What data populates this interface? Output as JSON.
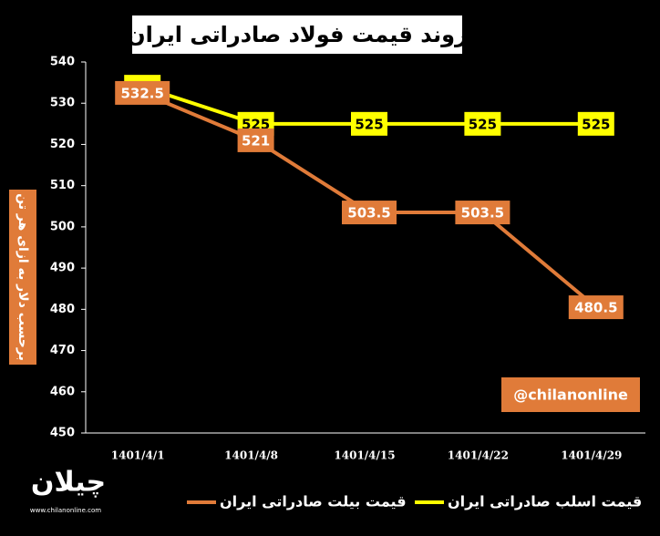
{
  "chart_data": {
    "type": "line",
    "title": "روند قیمت فولاد صادراتی ایران",
    "y_label": "برحسب دلار به ازای هر تن",
    "categories": [
      "1401/4/1",
      "1401/4/8",
      "1401/4/15",
      "1401/4/22",
      "1401/4/29"
    ],
    "series": [
      {
        "name": "قیمت اسلب صادراتی ایران",
        "color": "#ffff00",
        "values": [
          534,
          525,
          525,
          525,
          525
        ]
      },
      {
        "name": "قیمت بیلت صادراتی ایران",
        "color": "#e07b39",
        "values": [
          532.5,
          521,
          503.5,
          503.5,
          480.5
        ]
      }
    ],
    "ylim": [
      450,
      540
    ],
    "yticks": [
      450,
      460,
      470,
      480,
      490,
      500,
      510,
      520,
      530,
      540
    ],
    "annotation": "@chilanonline",
    "logo": {
      "name": "چیلان",
      "url": "www.chilanonline.com"
    }
  }
}
